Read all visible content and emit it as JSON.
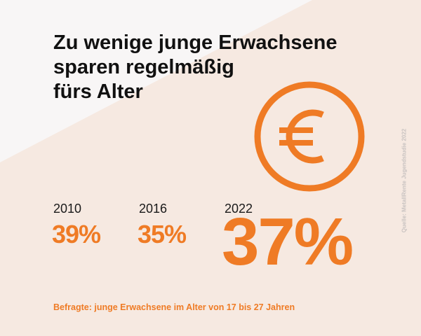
{
  "title_lines": [
    "Zu wenige junge Erwachsene",
    "sparen regelmäßig",
    "fürs Alter"
  ],
  "accent_color": "#ef7b25",
  "background_shape_color": "#f6e9e1",
  "icon": "euro-circle-icon",
  "chart_data": {
    "type": "table",
    "categories": [
      "2010",
      "2016",
      "2022"
    ],
    "values": [
      39,
      35,
      37
    ],
    "value_labels": [
      "39%",
      "35%",
      "37%"
    ],
    "highlighted_category": "2022"
  },
  "note": "Befragte: junge Erwachsene im Alter von 17 bis 27 Jahren",
  "source": "Quelle: MetallRente Jugendstudie 2022"
}
